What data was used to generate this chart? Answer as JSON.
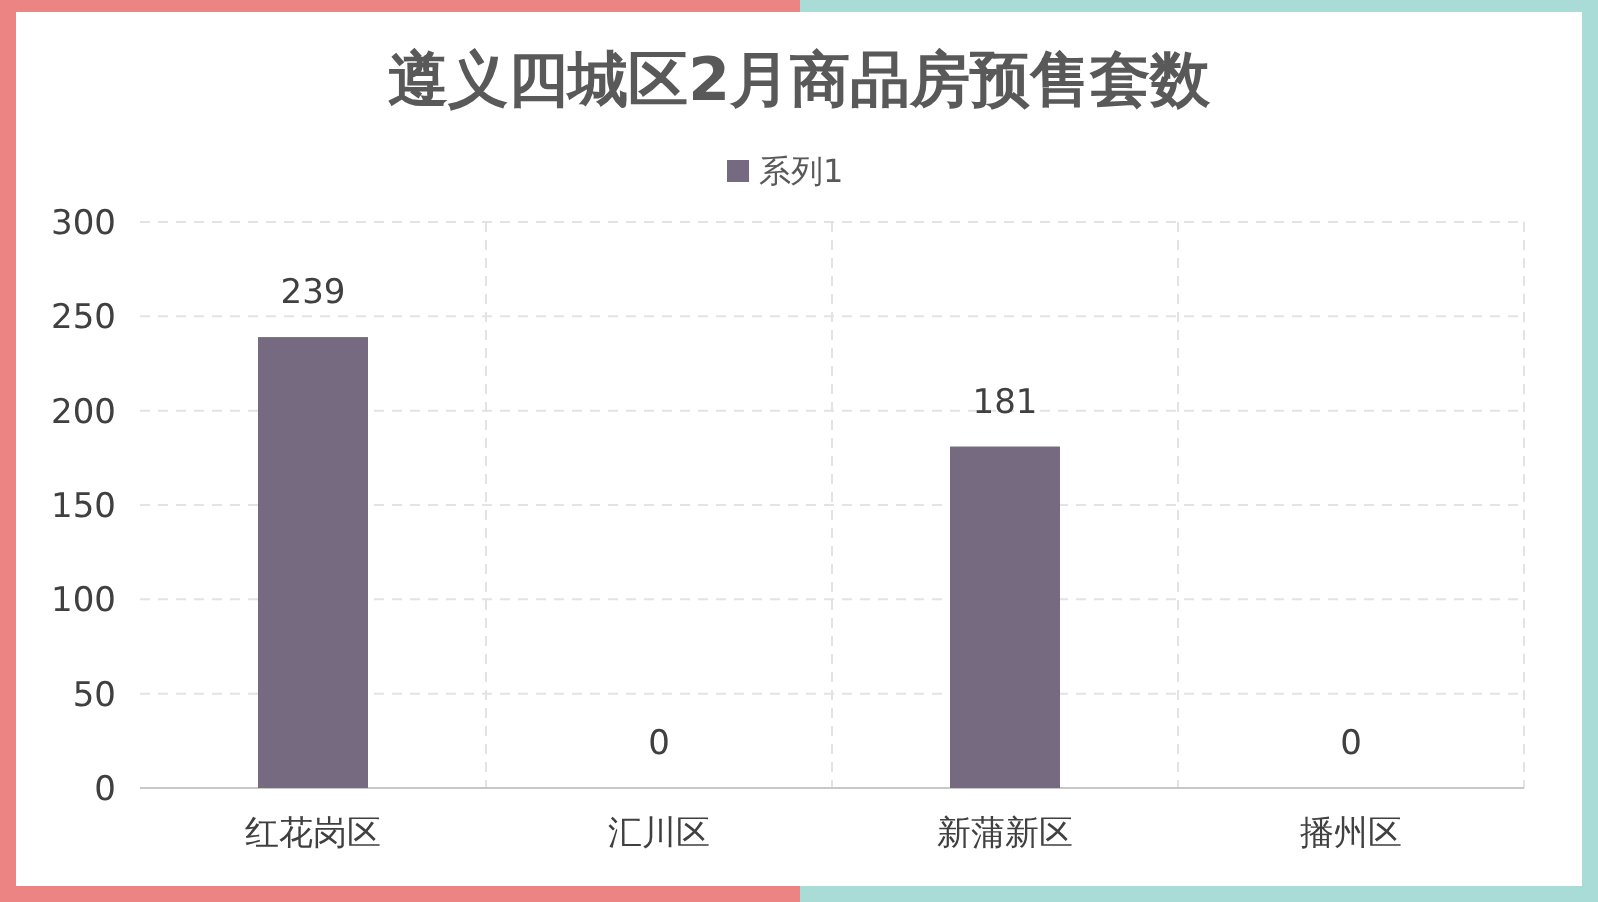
{
  "chart_data": {
    "type": "bar",
    "title": "遵义四城区2月商品房预售套数",
    "categories": [
      "红花岗区",
      "汇川区",
      "新蒲新区",
      "播州区"
    ],
    "series": [
      {
        "name": "系列1",
        "color": "#756a80",
        "values": [
          239,
          0,
          181,
          0
        ]
      }
    ],
    "ylim": [
      0,
      300
    ],
    "yticks": [
      0,
      50,
      100,
      150,
      200,
      250,
      300
    ],
    "grid": true,
    "legend": "top",
    "data_labels": true
  }
}
